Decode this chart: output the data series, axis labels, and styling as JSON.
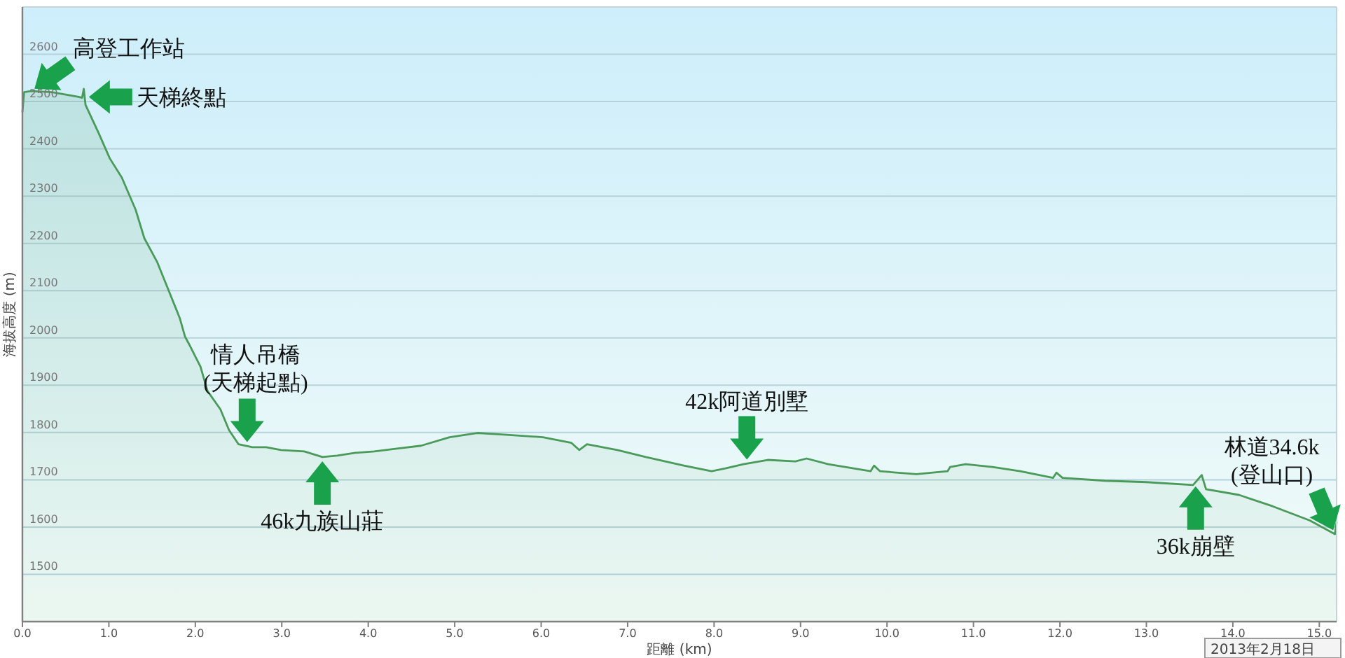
{
  "chart_data": {
    "type": "area",
    "xlabel": "距離 (km)",
    "ylabel": "海拔高度 (m)",
    "color": "#4a9a5a",
    "x": [
      0.0,
      0.02,
      0.1,
      0.34,
      0.65,
      0.69,
      0.71,
      0.73,
      0.88,
      1.01,
      1.15,
      1.31,
      1.41,
      1.56,
      1.69,
      1.82,
      1.88,
      1.93,
      2.06,
      2.14,
      2.29,
      2.39,
      2.5,
      2.66,
      2.82,
      2.99,
      3.26,
      3.47,
      3.64,
      3.85,
      4.07,
      4.33,
      4.61,
      4.94,
      5.26,
      5.54,
      6.02,
      6.35,
      6.44,
      6.53,
      6.88,
      7.21,
      7.65,
      7.97,
      8.13,
      8.34,
      8.62,
      8.94,
      9.07,
      9.32,
      9.81,
      9.85,
      9.92,
      10.34,
      10.7,
      10.73,
      10.91,
      11.22,
      11.54,
      11.92,
      11.96,
      12.03,
      12.52,
      13.0,
      13.54,
      13.64,
      13.69,
      14.07,
      14.46,
      14.89,
      15.18,
      15.2
    ],
    "values": [
      2478,
      2520,
      2522,
      2520,
      2510,
      2508,
      2527,
      2493,
      2434,
      2380,
      2339,
      2271,
      2211,
      2160,
      2101,
      2042,
      2003,
      1986,
      1939,
      1888,
      1849,
      1805,
      1775,
      1769,
      1769,
      1763,
      1760,
      1748,
      1751,
      1757,
      1760,
      1766,
      1772,
      1790,
      1799,
      1796,
      1790,
      1778,
      1763,
      1775,
      1763,
      1748,
      1730,
      1718,
      1724,
      1733,
      1742,
      1739,
      1745,
      1733,
      1718,
      1730,
      1718,
      1712,
      1718,
      1727,
      1733,
      1727,
      1718,
      1704,
      1715,
      1704,
      1698,
      1695,
      1689,
      1710,
      1680,
      1668,
      1644,
      1614,
      1585,
      1610
    ],
    "xlim": [
      0,
      15.2
    ],
    "ylim": [
      1400,
      2700
    ],
    "xticks": [
      {
        "value": 0,
        "label": "0.0"
      },
      {
        "value": 1,
        "label": "1.0"
      },
      {
        "value": 2,
        "label": "2.0"
      },
      {
        "value": 3,
        "label": "3.0"
      },
      {
        "value": 4,
        "label": "4.0"
      },
      {
        "value": 5,
        "label": "5.0"
      },
      {
        "value": 6,
        "label": "6.0"
      },
      {
        "value": 7,
        "label": "7.0"
      },
      {
        "value": 8,
        "label": "8.0"
      },
      {
        "value": 9,
        "label": "9.0"
      },
      {
        "value": 10,
        "label": "10.0"
      },
      {
        "value": 11,
        "label": "11.0"
      },
      {
        "value": 12,
        "label": "12.0"
      },
      {
        "value": 13,
        "label": "13.0"
      },
      {
        "value": 14,
        "label": "14.0"
      },
      {
        "value": 15,
        "label": "15.0"
      }
    ],
    "yticks": [
      1500,
      1600,
      1700,
      1800,
      1900,
      2000,
      2100,
      2200,
      2300,
      2400,
      2500,
      2600
    ],
    "grid": "y",
    "annotations": [
      {
        "text": "高登工作站",
        "x": 0.1,
        "y": 2522
      },
      {
        "text": "天梯終點",
        "x": 0.72,
        "y": 2510
      },
      {
        "text": "情人吊橋\n(天梯起點)",
        "x": 2.6,
        "y": 1771
      },
      {
        "text": "46k九族山莊",
        "x": 3.47,
        "y": 1748
      },
      {
        "text": "42k阿道別墅",
        "x": 8.38,
        "y": 1734
      },
      {
        "text": "36k崩壁",
        "x": 13.57,
        "y": 1695
      },
      {
        "text": "林道34.6k\n(登山口)",
        "x": 15.18,
        "y": 1585
      },
      "2013年2月18日"
    ]
  }
}
